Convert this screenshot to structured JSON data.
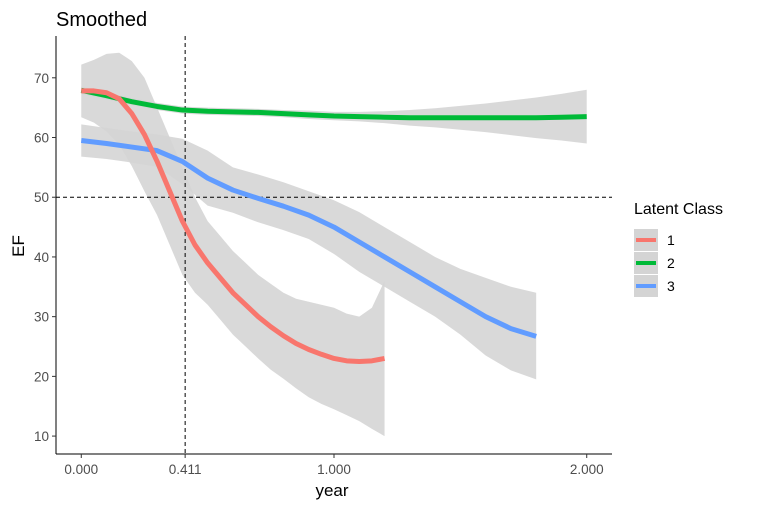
{
  "chart_data": {
    "type": "line",
    "title": "Smoothed",
    "xlabel": "year",
    "ylabel": "EF",
    "xlim": [
      -0.1,
      2.1
    ],
    "ylim": [
      7,
      77
    ],
    "x_ticks": [
      0.0,
      0.411,
      1.0,
      2.0
    ],
    "x_tick_labels": [
      "0.000",
      "0.411",
      "1.000",
      "2.000"
    ],
    "y_ticks": [
      10,
      20,
      30,
      40,
      50,
      60,
      70
    ],
    "y_tick_labels": [
      "10",
      "20",
      "30",
      "40",
      "50",
      "60",
      "70"
    ],
    "reference_lines": {
      "vertical_x": 0.411,
      "horizontal_y": 50
    },
    "legend": {
      "title": "Latent Class",
      "position": "right"
    },
    "band_color": "#d4d4d4",
    "series": [
      {
        "name": "1",
        "color": "#F8766D",
        "x": [
          0.0,
          0.05,
          0.1,
          0.15,
          0.2,
          0.25,
          0.3,
          0.35,
          0.4,
          0.45,
          0.5,
          0.55,
          0.6,
          0.65,
          0.7,
          0.75,
          0.8,
          0.85,
          0.9,
          0.95,
          1.0,
          1.05,
          1.1,
          1.15,
          1.2
        ],
        "y": [
          67.8,
          67.8,
          67.5,
          66.5,
          64.0,
          60.5,
          56.0,
          51.0,
          46.0,
          42.0,
          39.0,
          36.5,
          34.0,
          32.0,
          30.0,
          28.3,
          26.8,
          25.5,
          24.5,
          23.7,
          23.0,
          22.6,
          22.5,
          22.6,
          23.0
        ],
        "upper": [
          72.2,
          73.0,
          74.0,
          74.2,
          72.8,
          70.0,
          65.0,
          60.0,
          55.0,
          50.0,
          46.0,
          43.5,
          41.0,
          39.0,
          37.0,
          35.5,
          34.0,
          33.0,
          32.5,
          32.0,
          31.5,
          30.5,
          30.0,
          31.5,
          36.0
        ],
        "lower": [
          63.4,
          62.5,
          61.0,
          58.8,
          55.2,
          51.0,
          47.0,
          42.0,
          37.0,
          34.0,
          32.0,
          29.5,
          27.0,
          25.0,
          23.0,
          21.1,
          19.6,
          18.0,
          16.5,
          15.4,
          14.5,
          13.5,
          12.5,
          11.2,
          10.0
        ]
      },
      {
        "name": "2",
        "color": "#00BA38",
        "x": [
          0.0,
          0.1,
          0.2,
          0.3,
          0.4,
          0.5,
          0.6,
          0.7,
          0.8,
          0.9,
          1.0,
          1.1,
          1.2,
          1.3,
          1.4,
          1.5,
          1.6,
          1.7,
          1.8,
          1.9,
          2.0
        ],
        "y": [
          67.9,
          67.0,
          66.0,
          65.2,
          64.6,
          64.4,
          64.3,
          64.2,
          64.0,
          63.8,
          63.6,
          63.5,
          63.4,
          63.3,
          63.3,
          63.3,
          63.3,
          63.3,
          63.3,
          63.4,
          63.5
        ],
        "upper": [
          68.5,
          67.6,
          66.6,
          65.8,
          65.2,
          65.0,
          64.9,
          64.8,
          64.6,
          64.5,
          64.3,
          64.3,
          64.4,
          64.6,
          64.9,
          65.3,
          65.7,
          66.2,
          66.7,
          67.3,
          68.0
        ],
        "lower": [
          67.3,
          66.4,
          65.4,
          64.6,
          64.0,
          63.8,
          63.7,
          63.6,
          63.4,
          63.1,
          62.9,
          62.7,
          62.4,
          62.0,
          61.7,
          61.3,
          60.9,
          60.4,
          59.9,
          59.5,
          59.0
        ]
      },
      {
        "name": "3",
        "color": "#619CFF",
        "x": [
          0.0,
          0.1,
          0.2,
          0.3,
          0.4,
          0.5,
          0.6,
          0.7,
          0.8,
          0.9,
          1.0,
          1.1,
          1.2,
          1.3,
          1.4,
          1.5,
          1.6,
          1.7,
          1.8
        ],
        "y": [
          59.5,
          59.0,
          58.4,
          57.8,
          56.0,
          53.2,
          51.2,
          49.8,
          48.5,
          47.0,
          45.0,
          42.5,
          40.0,
          37.5,
          35.0,
          32.5,
          30.0,
          28.0,
          26.7
        ],
        "upper": [
          62.2,
          61.6,
          61.0,
          60.5,
          59.8,
          57.8,
          55.0,
          53.8,
          52.5,
          51.0,
          49.5,
          47.5,
          45.0,
          42.5,
          40.0,
          38.0,
          36.5,
          35.0,
          34.0
        ],
        "lower": [
          56.8,
          56.4,
          55.8,
          55.1,
          52.2,
          48.6,
          47.4,
          45.8,
          44.5,
          43.0,
          40.5,
          37.5,
          35.0,
          32.5,
          30.0,
          27.0,
          23.5,
          21.0,
          19.5
        ]
      }
    ]
  }
}
